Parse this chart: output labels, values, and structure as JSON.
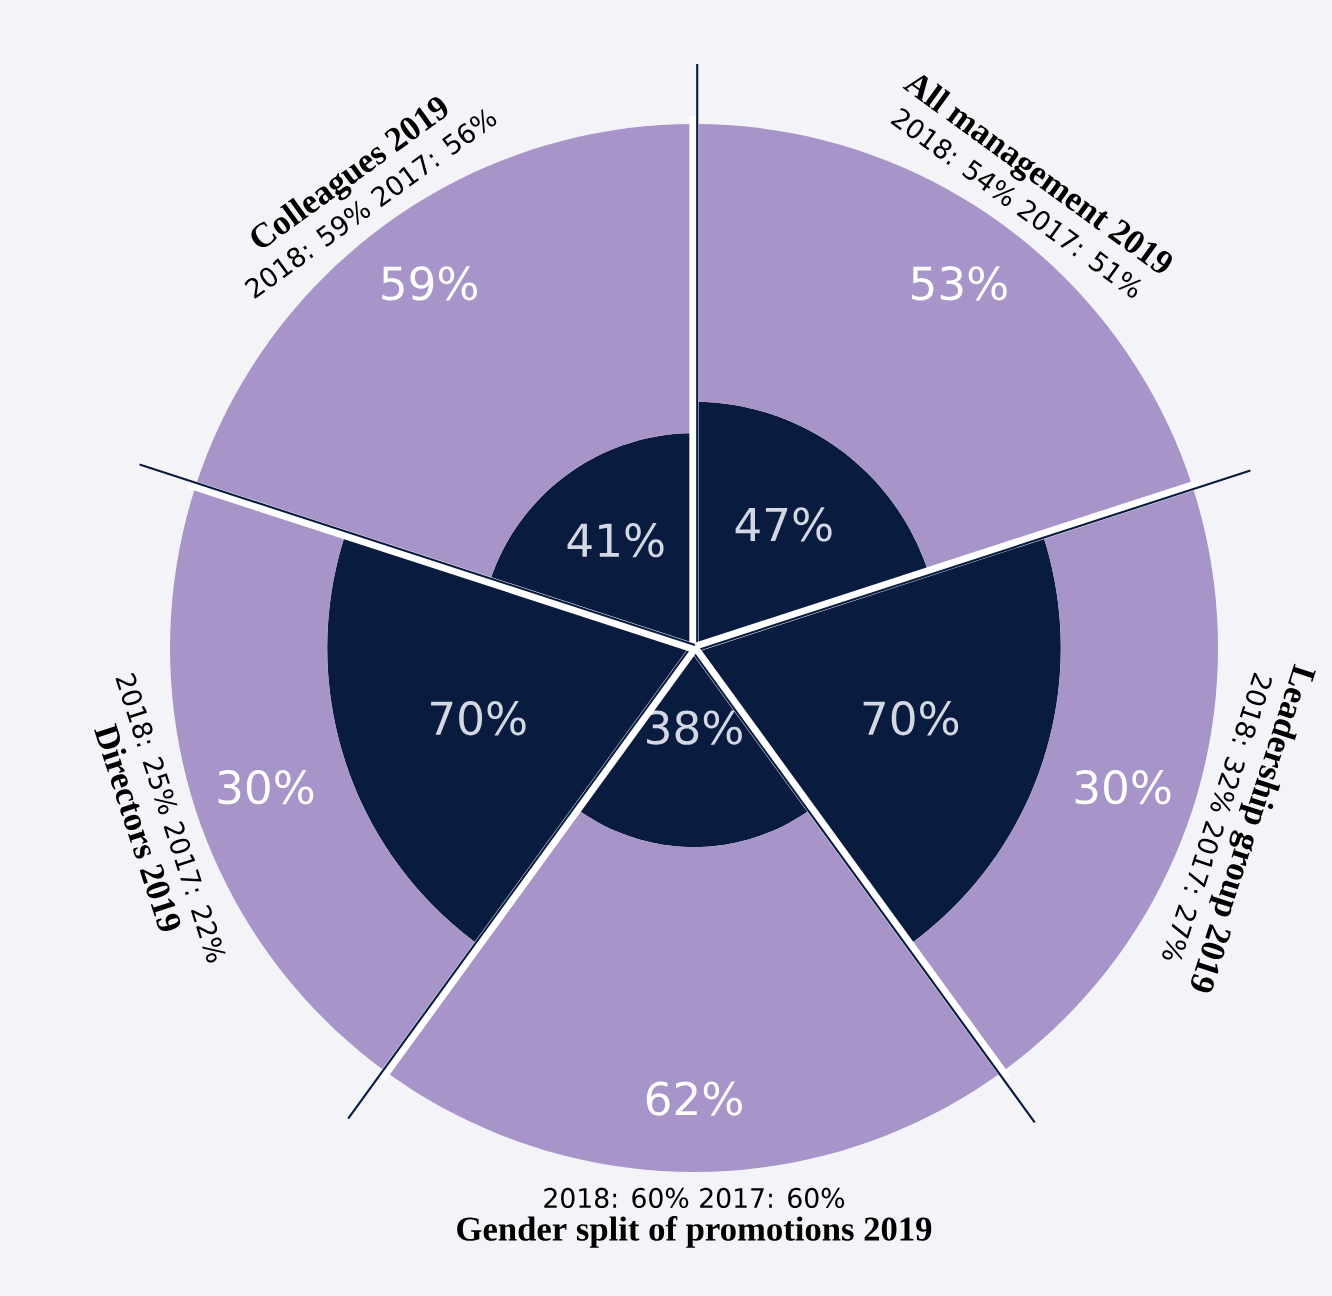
{
  "chart_data": {
    "type": "other",
    "categories": [
      "All management 2019",
      "Leadership group 2019",
      "Gender split of promotions 2019",
      "Directors 2019",
      "Colleagues 2019"
    ],
    "series": [
      {
        "color": "#091c40",
        "values": [
          47,
          70,
          38,
          70,
          41
        ],
        "value_labels": [
          "47%",
          "70%",
          "38%",
          "70%",
          "41%"
        ]
      },
      {
        "color": "#a794c8",
        "values": [
          53,
          30,
          62,
          30,
          59
        ],
        "value_labels": [
          "53%",
          "30%",
          "62%",
          "30%",
          "59%"
        ]
      }
    ],
    "annotations": [
      "2018: 54% 2017: 51%",
      "2018: 32% 2017: 27%",
      "2018: 60% 2017: 60%",
      "2018: 25% 2017: 22%",
      "2018: 59% 2017: 56%"
    ]
  }
}
